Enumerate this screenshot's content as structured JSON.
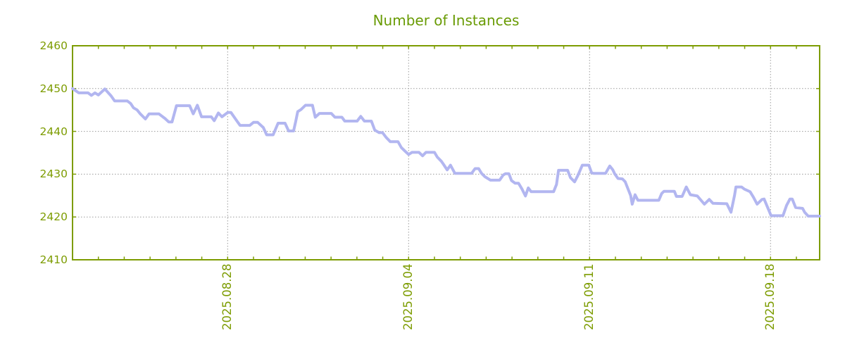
{
  "chart_data": {
    "type": "line",
    "title": "Number of Instances",
    "grid": true,
    "legend": false,
    "x_axis": {
      "range_days": [
        0,
        28.9
      ],
      "minor_tick_interval_days": 1,
      "major_ticks": [
        {
          "day": 6,
          "label": "2025.08.28"
        },
        {
          "day": 13,
          "label": "2025.09.04"
        },
        {
          "day": 20,
          "label": "2025.09.11"
        },
        {
          "day": 27,
          "label": "2025.09.18"
        }
      ]
    },
    "y_axis": {
      "range": [
        2410,
        2460
      ],
      "ticks": [
        {
          "value": 2410,
          "label": "2410"
        },
        {
          "value": 2420,
          "label": "2420"
        },
        {
          "value": 2430,
          "label": "2430"
        },
        {
          "value": 2440,
          "label": "2440"
        },
        {
          "value": 2450,
          "label": "2450"
        },
        {
          "value": 2460,
          "label": "2460"
        }
      ]
    },
    "colors": {
      "title": "#699b04",
      "axis": "#7d9c02",
      "grid": "#9a9a9a",
      "line": "#b2b6f0"
    },
    "series": [
      {
        "name": "Number of Instances",
        "color": "#b2b6f0",
        "points": [
          [
            0,
            2450
          ],
          [
            0.24,
            2449
          ],
          [
            0.6,
            2449
          ],
          [
            0.73,
            2448.4
          ],
          [
            0.87,
            2449
          ],
          [
            1.0,
            2448.5
          ],
          [
            1.25,
            2449.9
          ],
          [
            1.49,
            2448.3
          ],
          [
            1.63,
            2447.1
          ],
          [
            2.12,
            2447.1
          ],
          [
            2.25,
            2446.5
          ],
          [
            2.36,
            2445.5
          ],
          [
            2.5,
            2445
          ],
          [
            2.62,
            2444.1
          ],
          [
            2.82,
            2442.9
          ],
          [
            2.96,
            2444.1
          ],
          [
            3.34,
            2444.1
          ],
          [
            3.58,
            2443
          ],
          [
            3.72,
            2442.2
          ],
          [
            3.85,
            2442.2
          ],
          [
            4.02,
            2446
          ],
          [
            4.53,
            2446
          ],
          [
            4.67,
            2444.1
          ],
          [
            4.83,
            2446.1
          ],
          [
            4.99,
            2443.4
          ],
          [
            5.37,
            2443.4
          ],
          [
            5.48,
            2442.5
          ],
          [
            5.64,
            2444.3
          ],
          [
            5.78,
            2443.4
          ],
          [
            6.0,
            2444.4
          ],
          [
            6.13,
            2444.4
          ],
          [
            6.35,
            2442.5
          ],
          [
            6.48,
            2441.4
          ],
          [
            6.86,
            2441.4
          ],
          [
            7.0,
            2442.1
          ],
          [
            7.16,
            2442.1
          ],
          [
            7.38,
            2440.9
          ],
          [
            7.51,
            2439.2
          ],
          [
            7.76,
            2439.2
          ],
          [
            7.95,
            2441.9
          ],
          [
            8.22,
            2441.9
          ],
          [
            8.36,
            2440.1
          ],
          [
            8.55,
            2440.1
          ],
          [
            8.63,
            2442.2
          ],
          [
            8.71,
            2444.6
          ],
          [
            8.84,
            2445.1
          ],
          [
            9.01,
            2446.1
          ],
          [
            9.28,
            2446.1
          ],
          [
            9.39,
            2443.3
          ],
          [
            9.55,
            2444.2
          ],
          [
            10.01,
            2444.2
          ],
          [
            10.15,
            2443.3
          ],
          [
            10.42,
            2443.3
          ],
          [
            10.53,
            2442.4
          ],
          [
            11.01,
            2442.4
          ],
          [
            11.15,
            2443.5
          ],
          [
            11.29,
            2442.4
          ],
          [
            11.56,
            2442.4
          ],
          [
            11.69,
            2440.3
          ],
          [
            11.86,
            2439.7
          ],
          [
            11.99,
            2439.7
          ],
          [
            12.13,
            2438.6
          ],
          [
            12.29,
            2437.6
          ],
          [
            12.59,
            2437.6
          ],
          [
            12.72,
            2436.2
          ],
          [
            12.91,
            2435.1
          ],
          [
            13.0,
            2434.6
          ],
          [
            13.13,
            2435.1
          ],
          [
            13.4,
            2435.1
          ],
          [
            13.54,
            2434.3
          ],
          [
            13.67,
            2435.1
          ],
          [
            14.0,
            2435.1
          ],
          [
            14.11,
            2434
          ],
          [
            14.27,
            2433
          ],
          [
            14.35,
            2432.3
          ],
          [
            14.49,
            2431
          ],
          [
            14.62,
            2432.1
          ],
          [
            14.79,
            2430.2
          ],
          [
            15.44,
            2430.2
          ],
          [
            15.57,
            2431.3
          ],
          [
            15.71,
            2431.3
          ],
          [
            15.82,
            2430.2
          ],
          [
            15.95,
            2429.4
          ],
          [
            16.17,
            2428.6
          ],
          [
            16.52,
            2428.6
          ],
          [
            16.66,
            2429.8
          ],
          [
            16.74,
            2430.1
          ],
          [
            16.88,
            2430.1
          ],
          [
            16.98,
            2428.5
          ],
          [
            17.12,
            2427.9
          ],
          [
            17.25,
            2427.9
          ],
          [
            17.39,
            2426.5
          ],
          [
            17.52,
            2424.9
          ],
          [
            17.63,
            2426.8
          ],
          [
            17.74,
            2425.9
          ],
          [
            18.61,
            2425.9
          ],
          [
            18.72,
            2427.6
          ],
          [
            18.8,
            2430.9
          ],
          [
            19.15,
            2430.9
          ],
          [
            19.26,
            2429.2
          ],
          [
            19.42,
            2428.2
          ],
          [
            19.55,
            2429.7
          ],
          [
            19.72,
            2432.1
          ],
          [
            19.97,
            2432.1
          ],
          [
            20.08,
            2430.3
          ],
          [
            20.15,
            2430.2
          ],
          [
            20.62,
            2430.2
          ],
          [
            20.78,
            2431.9
          ],
          [
            20.9,
            2431
          ],
          [
            20.97,
            2430.1
          ],
          [
            21.1,
            2429
          ],
          [
            21.27,
            2428.9
          ],
          [
            21.38,
            2428.2
          ],
          [
            21.59,
            2425
          ],
          [
            21.65,
            2423
          ],
          [
            21.76,
            2425.2
          ],
          [
            21.87,
            2423.9
          ],
          [
            22.68,
            2423.9
          ],
          [
            22.79,
            2425.5
          ],
          [
            22.88,
            2426
          ],
          [
            23.28,
            2426
          ],
          [
            23.36,
            2424.8
          ],
          [
            23.58,
            2424.8
          ],
          [
            23.74,
            2427
          ],
          [
            23.9,
            2425.2
          ],
          [
            24.17,
            2424.9
          ],
          [
            24.44,
            2423
          ],
          [
            24.63,
            2424.1
          ],
          [
            24.77,
            2423.2
          ],
          [
            25.31,
            2423.1
          ],
          [
            25.47,
            2421.1
          ],
          [
            25.61,
            2425.1
          ],
          [
            25.66,
            2427
          ],
          [
            25.88,
            2427
          ],
          [
            25.99,
            2426.5
          ],
          [
            26.21,
            2425.9
          ],
          [
            26.34,
            2424.6
          ],
          [
            26.48,
            2423
          ],
          [
            26.67,
            2424.1
          ],
          [
            26.75,
            2424.2
          ],
          [
            26.89,
            2422.2
          ],
          [
            27.02,
            2420.3
          ],
          [
            27.48,
            2420.3
          ],
          [
            27.62,
            2422.7
          ],
          [
            27.75,
            2424.2
          ],
          [
            27.84,
            2424.2
          ],
          [
            27.97,
            2422.2
          ],
          [
            28.24,
            2422
          ],
          [
            28.32,
            2421.1
          ],
          [
            28.46,
            2420.2
          ],
          [
            28.9,
            2420.2
          ]
        ]
      }
    ]
  }
}
